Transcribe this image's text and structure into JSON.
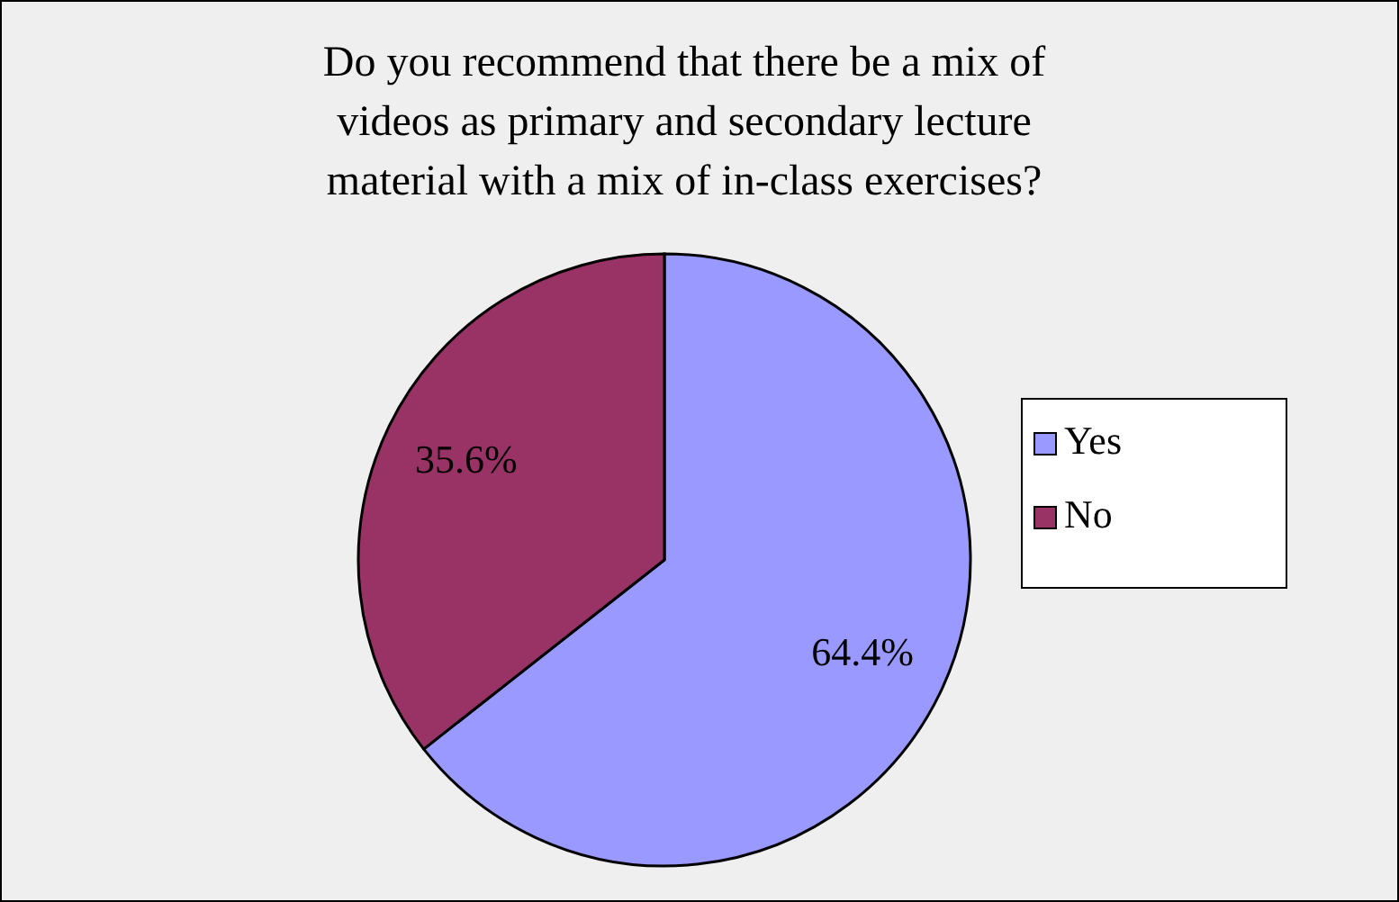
{
  "chart_data": {
    "type": "pie",
    "title": "Do you recommend that there be a mix of videos as primary and secondary lecture material with a mix of in-class exercises?",
    "categories": [
      "Yes",
      "No"
    ],
    "values": [
      64.4,
      35.6
    ],
    "colors": [
      "#9999ff",
      "#993366"
    ],
    "value_labels": [
      "64.4%",
      "35.6%"
    ],
    "legend": "right"
  }
}
